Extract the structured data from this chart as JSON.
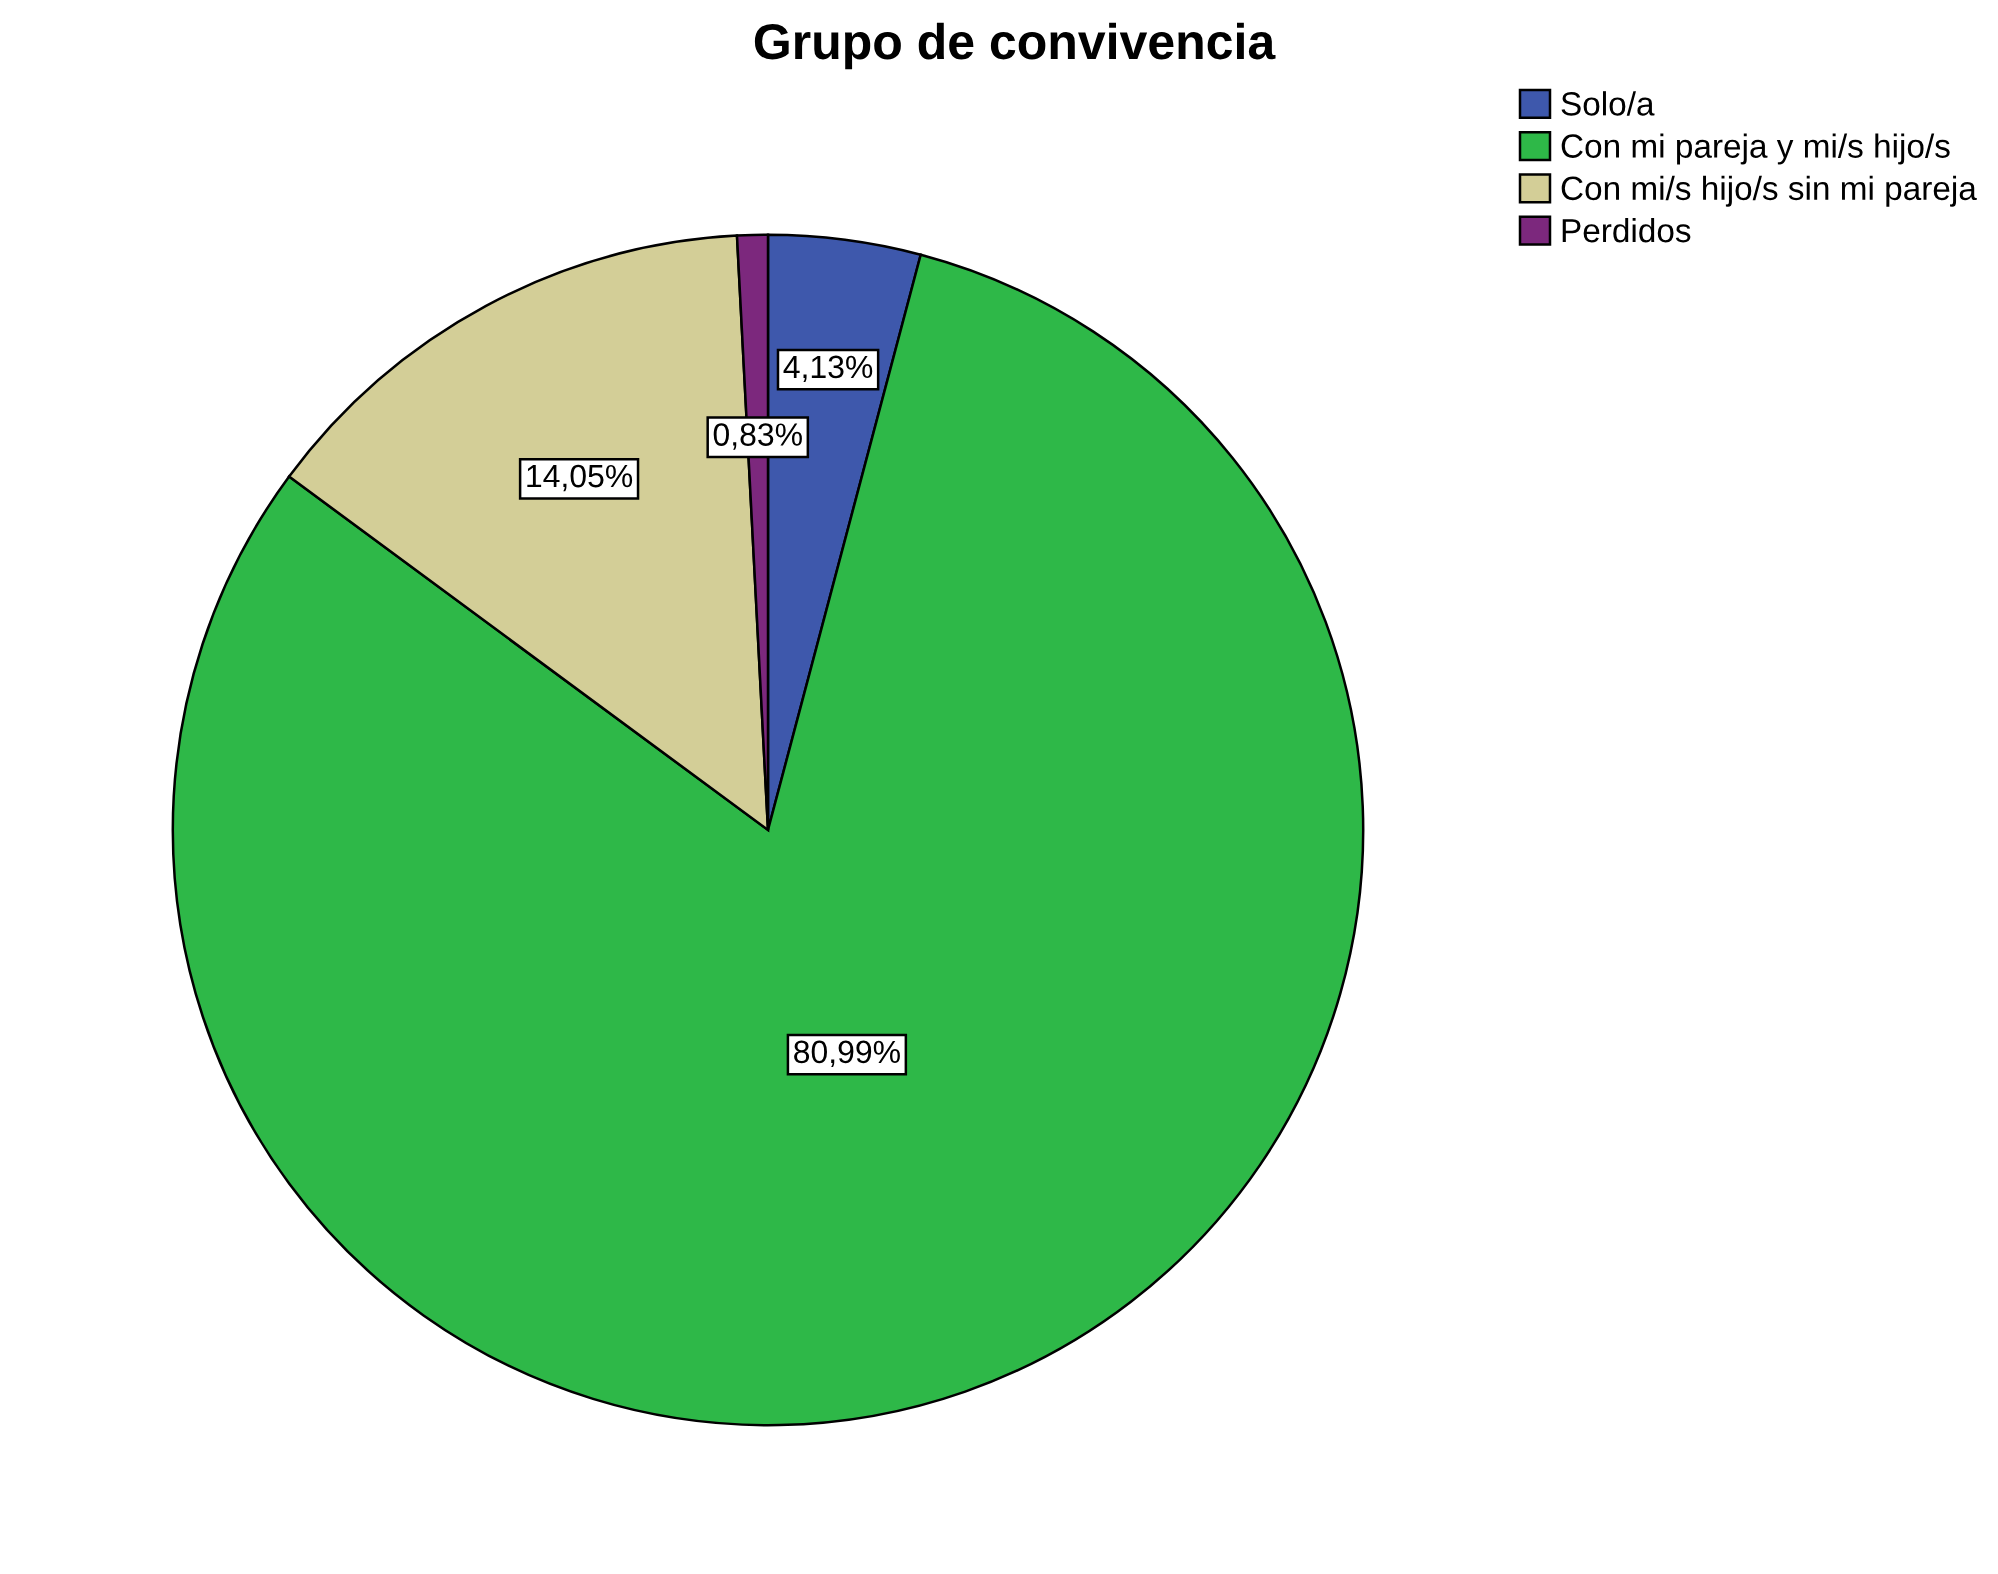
{
  "chart_data": {
    "type": "pie",
    "title": "Grupo de convivencia",
    "categories": [
      "Solo/a",
      "Con mi pareja y mi/s hijo/s",
      "Con mi/s hijo/s sin mi pareja",
      "Perdidos"
    ],
    "values": [
      4.13,
      80.99,
      14.05,
      0.83
    ],
    "colors": [
      "#3e58ac",
      "#2eb848",
      "#d3ce97",
      "#7c287d"
    ],
    "value_labels": [
      "4,13%",
      "80,99%",
      "14,05%",
      "0,83%"
    ],
    "legend": "top right"
  }
}
